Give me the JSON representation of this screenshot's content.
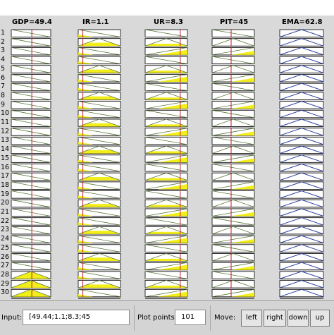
{
  "columns": [
    {
      "title": "GDP=49.4",
      "kind": "input",
      "input_fraction": 0.52
    },
    {
      "title": "IR=1.1",
      "kind": "input",
      "input_fraction": 0.11
    },
    {
      "title": "UR=8.3",
      "kind": "input",
      "input_fraction": 0.83
    },
    {
      "title": "PIT=45",
      "kind": "input",
      "input_fraction": 0.45
    },
    {
      "title": "EMA=62.8",
      "kind": "output"
    }
  ],
  "row_labels": [
    "1",
    "2",
    "3",
    "4",
    "5",
    "6",
    "7",
    "8",
    "9",
    "10",
    "11",
    "12",
    "13",
    "14",
    "15",
    "16",
    "17",
    "18",
    "19",
    "20",
    "21",
    "22",
    "23",
    "24",
    "25",
    "26",
    "27",
    "28",
    "29",
    "30"
  ],
  "colors": {
    "fill": "#f2ee1a",
    "input_line": "#c0192c",
    "mf_line": "#2a2a2a",
    "output_mf": "#2f3f9e",
    "panel_bg": "#d9d9d9"
  },
  "controls": {
    "input_label": "Input:",
    "input_value": "[49.44;1.1;8.3;45",
    "plot_points_label": "Plot points:",
    "plot_points_value": "101",
    "move_label": "Move:",
    "buttons": [
      "left",
      "right",
      "down",
      "up"
    ]
  }
}
